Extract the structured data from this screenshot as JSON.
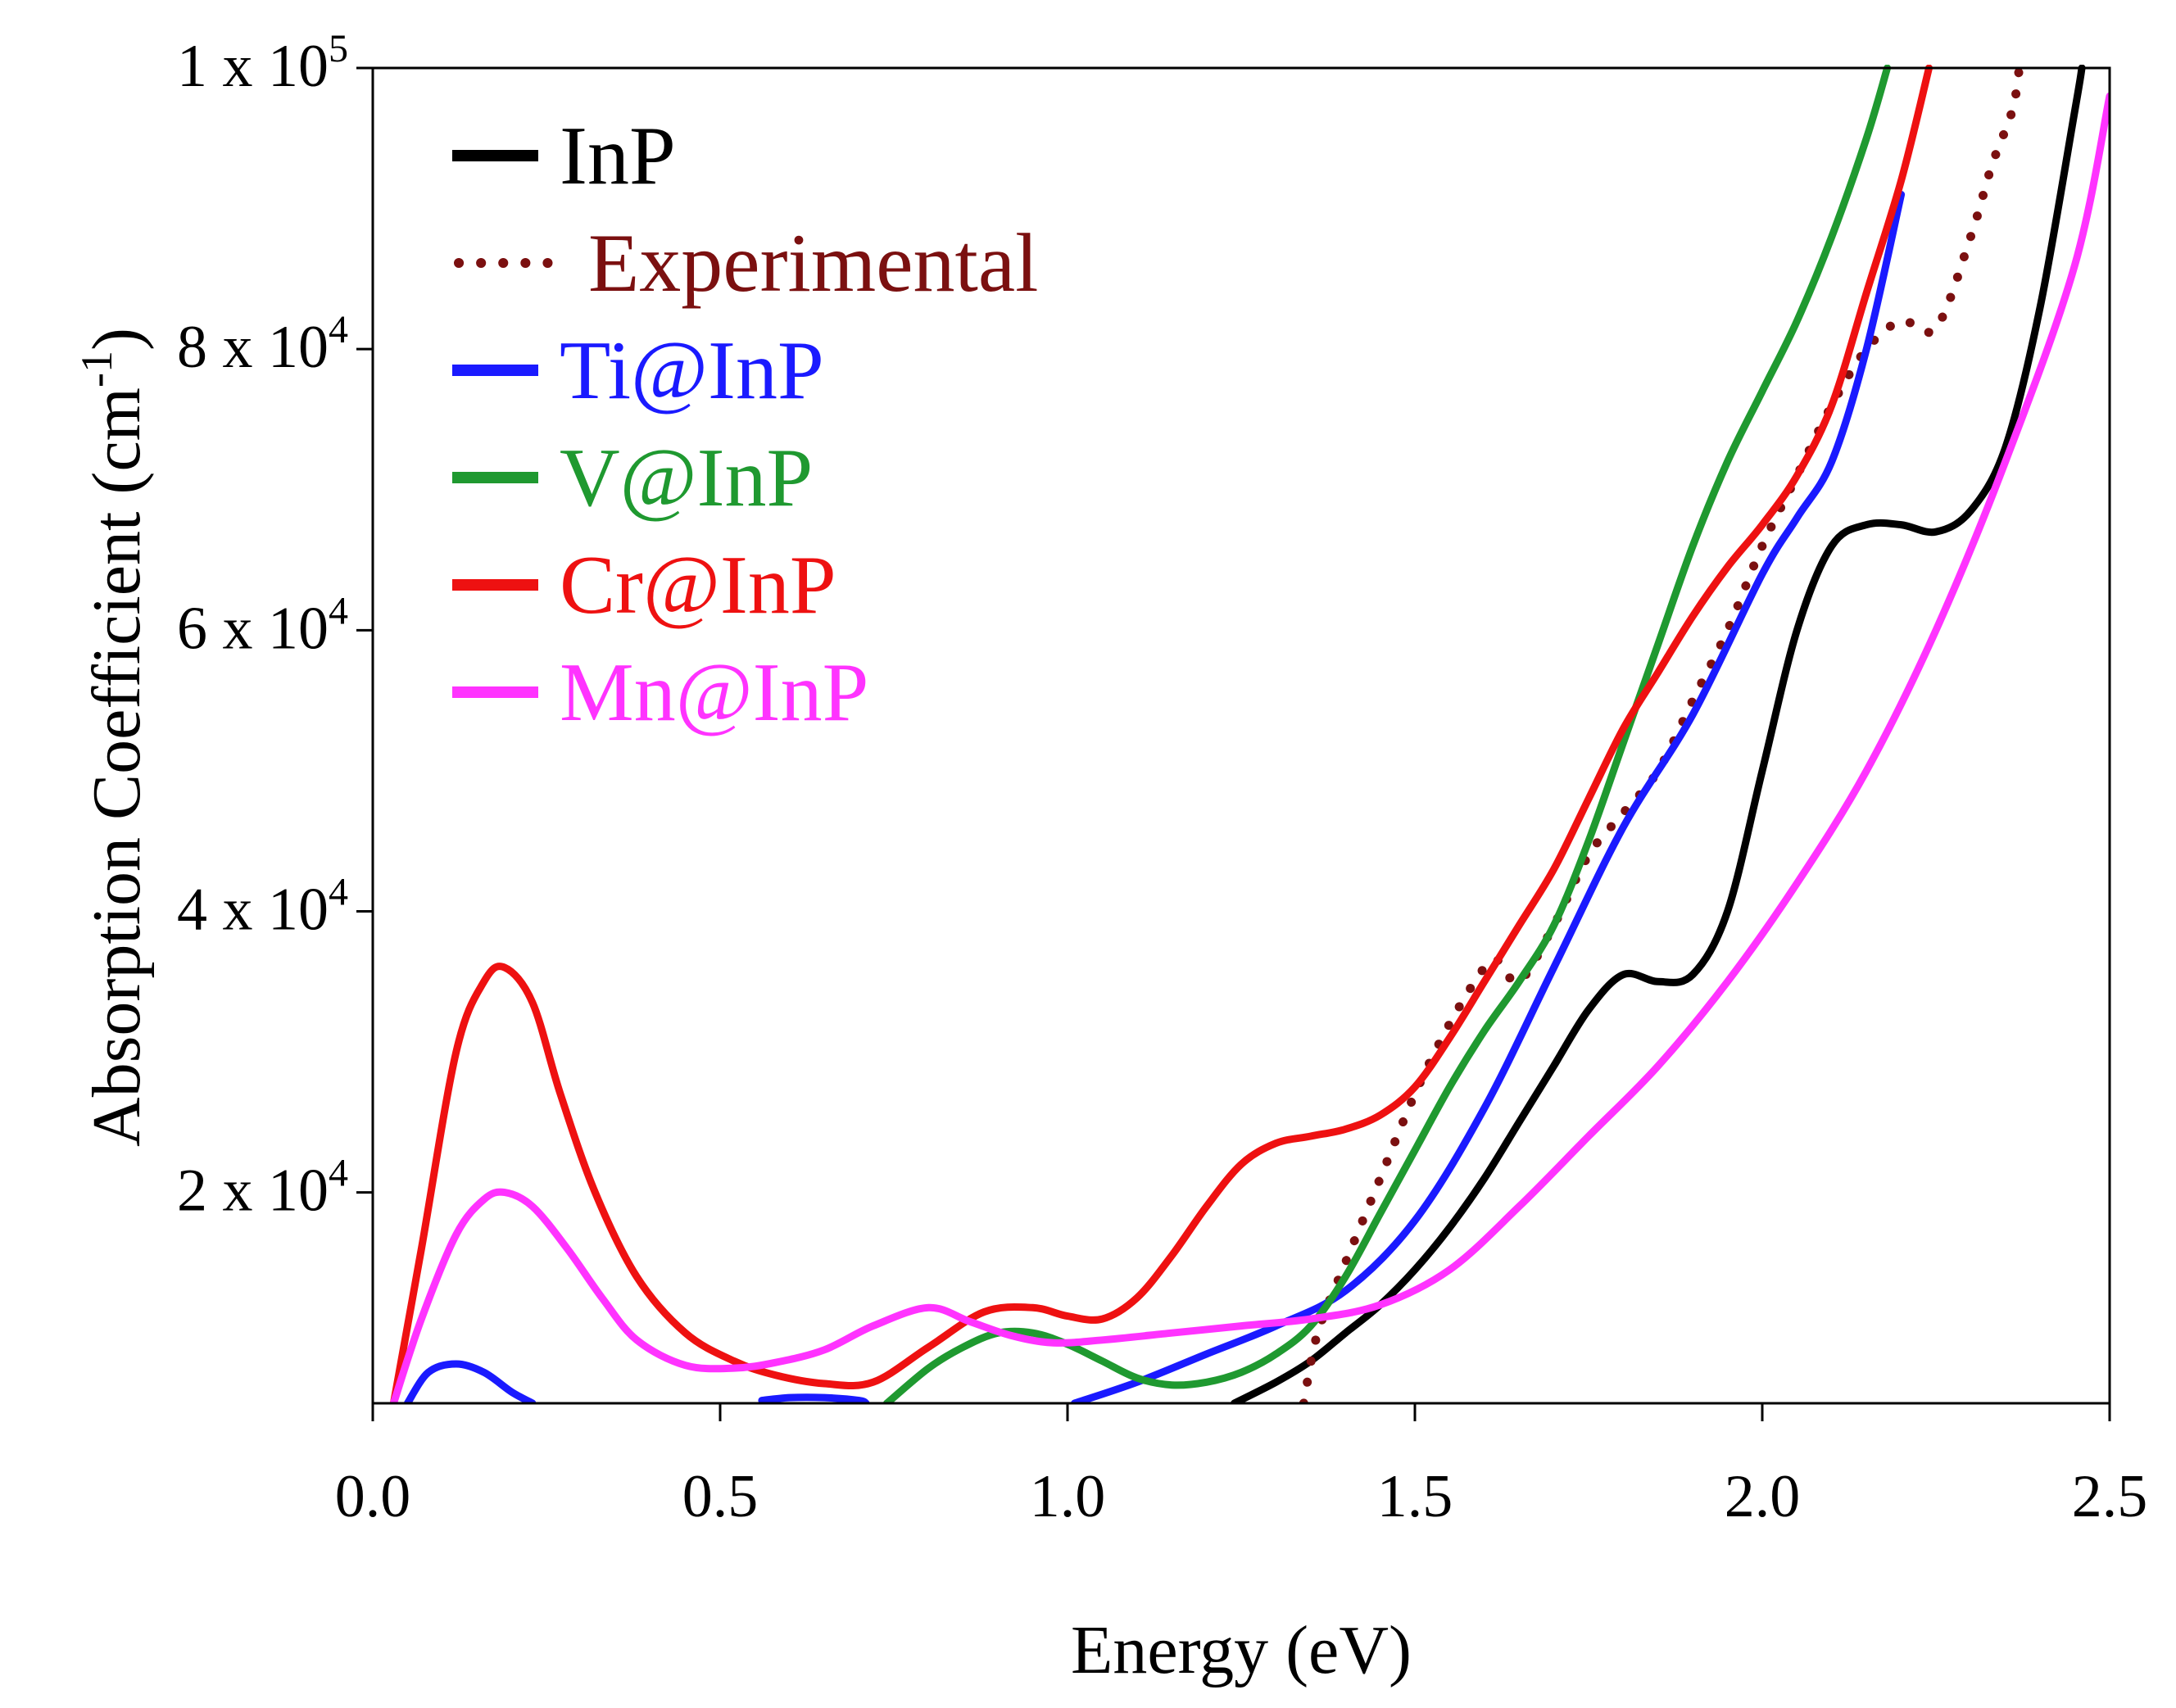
{
  "chart_data": {
    "type": "line",
    "title": "",
    "xlabel": "Energy (eV)",
    "ylabel": "Absorption Coefficient (cm",
    "ylabel_superscript": "-1",
    "ylabel_close": ")",
    "xlim": [
      0.0,
      2.5
    ],
    "ylim": [
      5000,
      100000
    ],
    "grid": false,
    "legend_position": "top-left",
    "x_ticks": [
      {
        "value": 0.0,
        "label": "0.0"
      },
      {
        "value": 0.5,
        "label": "0.5"
      },
      {
        "value": 1.0,
        "label": "1.0"
      },
      {
        "value": 1.5,
        "label": "1.5"
      },
      {
        "value": 2.0,
        "label": "2.0"
      },
      {
        "value": 2.5,
        "label": "2.5"
      }
    ],
    "y_ticks": [
      {
        "value": 20000,
        "label": "2 x 10",
        "exp": "4"
      },
      {
        "value": 40000,
        "label": "4 x 10",
        "exp": "4"
      },
      {
        "value": 60000,
        "label": "6 x 10",
        "exp": "4"
      },
      {
        "value": 80000,
        "label": "8 x 10",
        "exp": "4"
      },
      {
        "value": 100000,
        "label": "1 x 10",
        "exp": "5"
      }
    ],
    "series": [
      {
        "name": "InP",
        "color": "#000000",
        "style": "solid",
        "x": [
          1.24,
          1.3,
          1.35,
          1.4,
          1.45,
          1.5,
          1.55,
          1.6,
          1.65,
          1.7,
          1.75,
          1.8,
          1.85,
          1.9,
          1.95,
          2.0,
          2.05,
          2.1,
          2.15,
          2.2,
          2.25,
          2.3,
          2.35,
          2.4,
          2.45,
          2.46
        ],
        "y": [
          5000,
          6500,
          8000,
          10000,
          12000,
          14500,
          17500,
          21000,
          25000,
          29000,
          33000,
          35500,
          35000,
          35500,
          40000,
          50000,
          60000,
          66000,
          67500,
          67500,
          67000,
          68500,
          73000,
          83000,
          97000,
          100000
        ]
      },
      {
        "name": "Experimental",
        "color": "#7b1010",
        "style": "dotted",
        "x": [
          1.34,
          1.36,
          1.4,
          1.45,
          1.5,
          1.55,
          1.6,
          1.62,
          1.65,
          1.7,
          1.75,
          1.8,
          1.85,
          1.9,
          1.95,
          2.0,
          2.05,
          2.1,
          2.15,
          2.2,
          2.25,
          2.3,
          2.33,
          2.36,
          2.37
        ],
        "y": [
          5000,
          10000,
          15000,
          21000,
          27000,
          32000,
          36000,
          36500,
          35000,
          39000,
          44000,
          47000,
          50000,
          55000,
          60000,
          66000,
          71000,
          76000,
          80000,
          82000,
          81500,
          88000,
          93000,
          97000,
          100000
        ]
      },
      {
        "name": "Ti@InP",
        "color": "#1a1aff",
        "style": "solid",
        "segments": [
          {
            "x": [
              0.05,
              0.08,
              0.12,
              0.16,
              0.2,
              0.23
            ],
            "y": [
              5000,
              7200,
              7800,
              7200,
              5800,
              5000
            ]
          },
          {
            "x": [
              0.56,
              0.6,
              0.65,
              0.7,
              0.71
            ],
            "y": [
              5200,
              5400,
              5400,
              5200,
              5000
            ]
          },
          {
            "x": [
              1.01,
              1.1,
              1.2,
              1.3,
              1.4,
              1.5,
              1.6,
              1.7,
              1.8,
              1.9,
              2.0,
              2.05,
              2.1,
              2.15,
              2.2
            ],
            "y": [
              5000,
              6500,
              8500,
              10500,
              13000,
              18000,
              26000,
              36000,
              46000,
              54000,
              64000,
              68000,
              72000,
              80000,
              91000
            ]
          }
        ]
      },
      {
        "name": "V@InP",
        "color": "#1f9930",
        "style": "solid",
        "x": [
          0.74,
          0.8,
          0.85,
          0.9,
          0.95,
          1.0,
          1.05,
          1.1,
          1.15,
          1.2,
          1.25,
          1.3,
          1.35,
          1.4,
          1.45,
          1.5,
          1.55,
          1.6,
          1.65,
          1.7,
          1.75,
          1.8,
          1.85,
          1.9,
          1.95,
          2.0,
          2.05,
          2.1,
          2.15,
          2.18
        ],
        "y": [
          5000,
          7500,
          9000,
          10000,
          10000,
          9200,
          8000,
          6800,
          6300,
          6500,
          7200,
          8500,
          10500,
          14000,
          18500,
          23000,
          27500,
          31500,
          35000,
          39000,
          45000,
          52000,
          59000,
          66000,
          72000,
          77000,
          82000,
          88000,
          95000,
          100000
        ]
      },
      {
        "name": "Cr@InP",
        "color": "#ee1111",
        "style": "solid",
        "x": [
          0.03,
          0.07,
          0.12,
          0.16,
          0.19,
          0.23,
          0.27,
          0.32,
          0.38,
          0.45,
          0.52,
          0.58,
          0.65,
          0.72,
          0.8,
          0.88,
          0.95,
          1.0,
          1.05,
          1.1,
          1.15,
          1.2,
          1.25,
          1.3,
          1.35,
          1.4,
          1.45,
          1.5,
          1.55,
          1.6,
          1.65,
          1.7,
          1.75,
          1.8,
          1.85,
          1.9,
          1.95,
          2.0,
          2.05,
          2.1,
          2.15,
          2.2,
          2.24
        ],
        "y": [
          5000,
          16000,
          30000,
          35000,
          36000,
          33500,
          27000,
          20000,
          14000,
          10000,
          8000,
          7000,
          6400,
          6500,
          9000,
          11500,
          11800,
          11200,
          11000,
          12500,
          15500,
          19000,
          22000,
          23500,
          24000,
          24500,
          25500,
          27500,
          31000,
          35000,
          39000,
          43000,
          48000,
          53000,
          57000,
          61000,
          64500,
          67500,
          71000,
          76000,
          84000,
          92000,
          100000
        ]
      },
      {
        "name": "Mn@InP",
        "color": "#ff33ff",
        "style": "solid",
        "x": [
          0.03,
          0.07,
          0.12,
          0.16,
          0.19,
          0.23,
          0.28,
          0.33,
          0.38,
          0.45,
          0.52,
          0.58,
          0.65,
          0.72,
          0.8,
          0.86,
          0.92,
          0.98,
          1.05,
          1.15,
          1.25,
          1.35,
          1.45,
          1.55,
          1.65,
          1.75,
          1.85,
          1.95,
          2.05,
          2.15,
          2.25,
          2.35,
          2.45,
          2.5
        ],
        "y": [
          5000,
          11000,
          17000,
          19500,
          20000,
          19000,
          16000,
          12500,
          9500,
          7700,
          7500,
          7900,
          8800,
          10500,
          11800,
          10800,
          9800,
          9300,
          9500,
          10000,
          10500,
          11000,
          12000,
          14500,
          19000,
          24000,
          29000,
          35000,
          42000,
          50000,
          60000,
          72000,
          86000,
          98000
        ]
      }
    ]
  }
}
